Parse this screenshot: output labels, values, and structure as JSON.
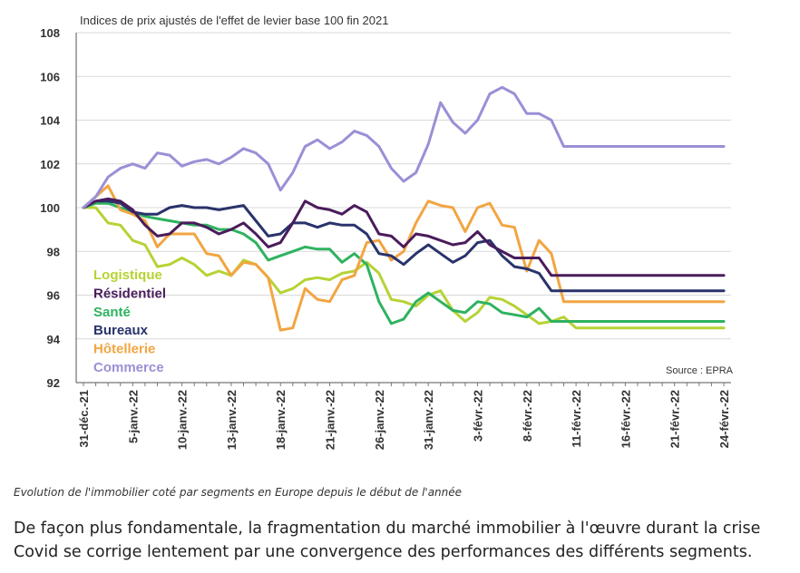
{
  "chart_data": {
    "type": "line",
    "title": "Indices de prix ajustés de l'effet de levier base 100 fin 2021",
    "source": "Source : EPRA",
    "ylim": [
      92,
      108
    ],
    "yticks": [
      92,
      94,
      96,
      98,
      100,
      102,
      104,
      106,
      108
    ],
    "x_tick_labels": [
      "31-déc.-21",
      "5-janv.-22",
      "10-janv.-22",
      "13-janv.-22",
      "18-janv.-22",
      "21-janv.-22",
      "26-janv.-22",
      "31-janv.-22",
      "3-févr.-22",
      "8-févr.-22",
      "11-févr.-22",
      "16-févr.-22",
      "21-févr.-22",
      "24-févr.-22"
    ],
    "x_tick_positions": [
      0,
      4,
      8,
      12,
      16,
      20,
      24,
      28,
      32,
      36,
      40,
      44,
      48,
      52
    ],
    "n_points": 53,
    "series": [
      {
        "name": "Logistique",
        "color": "#b5d334",
        "values": [
          100,
          100,
          99.3,
          99.2,
          98.5,
          98.3,
          97.3,
          97.4,
          97.7,
          97.4,
          96.9,
          97.1,
          96.9,
          97.6,
          97.4,
          96.8,
          96.1,
          96.3,
          96.7,
          96.8,
          96.7,
          97.0,
          97.1,
          97.5,
          97.0,
          95.8,
          95.7,
          95.5,
          96.0,
          96.2,
          95.3,
          94.8,
          95.2,
          95.9,
          95.8,
          95.5,
          95.1,
          94.7,
          94.8,
          95.0,
          94.5,
          94.5,
          94.5,
          94.5,
          94.5,
          94.5,
          94.5,
          94.5,
          94.5,
          94.5,
          94.5,
          94.5,
          94.5
        ]
      },
      {
        "name": "Résidentiel",
        "color": "#4a1c5c",
        "values": [
          100,
          100.3,
          100.4,
          100.3,
          99.9,
          99.2,
          98.7,
          98.8,
          99.3,
          99.3,
          99.1,
          98.8,
          99.0,
          99.3,
          98.8,
          98.2,
          98.4,
          99.3,
          100.3,
          100.0,
          99.9,
          99.7,
          100.1,
          99.8,
          98.8,
          98.7,
          98.2,
          98.8,
          98.7,
          98.5,
          98.3,
          98.4,
          98.9,
          98.3,
          98.0,
          97.7,
          97.7,
          97.7,
          96.9,
          96.9,
          96.9,
          96.9,
          96.9,
          96.9,
          96.9,
          96.9,
          96.9,
          96.9,
          96.9,
          96.9,
          96.9,
          96.9,
          96.9
        ]
      },
      {
        "name": "Santé",
        "color": "#2fb260",
        "values": [
          100,
          100.2,
          100.2,
          100.0,
          99.8,
          99.6,
          99.5,
          99.4,
          99.3,
          99.2,
          99.2,
          99.0,
          99.0,
          98.8,
          98.4,
          97.6,
          97.8,
          98.0,
          98.2,
          98.1,
          98.1,
          97.5,
          97.9,
          97.4,
          95.7,
          94.7,
          94.9,
          95.7,
          96.1,
          95.7,
          95.3,
          95.2,
          95.7,
          95.6,
          95.2,
          95.1,
          95.0,
          95.4,
          94.8,
          94.8,
          94.8,
          94.8,
          94.8,
          94.8,
          94.8,
          94.8,
          94.8,
          94.8,
          94.8,
          94.8,
          94.8,
          94.8,
          94.8
        ]
      },
      {
        "name": "Bureaux",
        "color": "#29336b",
        "values": [
          100,
          100.3,
          100.3,
          100.2,
          99.8,
          99.7,
          99.7,
          100.0,
          100.1,
          100.0,
          100.0,
          99.9,
          100.0,
          100.1,
          99.4,
          98.7,
          98.8,
          99.3,
          99.3,
          99.1,
          99.3,
          99.2,
          99.2,
          98.8,
          97.9,
          97.8,
          97.4,
          97.9,
          98.3,
          97.9,
          97.5,
          97.8,
          98.4,
          98.5,
          97.8,
          97.3,
          97.2,
          97.0,
          96.2,
          96.2,
          96.2,
          96.2,
          96.2,
          96.2,
          96.2,
          96.2,
          96.2,
          96.2,
          96.2,
          96.2,
          96.2,
          96.2,
          96.2
        ]
      },
      {
        "name": "Hôtellerie",
        "color": "#f2a541",
        "values": [
          100,
          100.5,
          101.0,
          99.9,
          99.7,
          99.4,
          98.2,
          98.8,
          98.8,
          98.8,
          97.9,
          97.8,
          96.9,
          97.5,
          97.4,
          96.8,
          94.4,
          94.5,
          96.3,
          95.8,
          95.7,
          96.7,
          96.9,
          98.4,
          98.5,
          97.6,
          98.0,
          99.3,
          100.3,
          100.1,
          100.0,
          98.9,
          100.0,
          100.2,
          99.2,
          99.1,
          97.1,
          98.5,
          97.9,
          95.7,
          95.7,
          95.7,
          95.7,
          95.7,
          95.7,
          95.7,
          95.7,
          95.7,
          95.7,
          95.7,
          95.7,
          95.7,
          95.7
        ]
      },
      {
        "name": "Commerce",
        "color": "#9b8fd6",
        "values": [
          100,
          100.5,
          101.4,
          101.8,
          102.0,
          101.8,
          102.5,
          102.4,
          101.9,
          102.1,
          102.2,
          102.0,
          102.3,
          102.7,
          102.5,
          102.0,
          100.8,
          101.6,
          102.8,
          103.1,
          102.7,
          103.0,
          103.5,
          103.3,
          102.8,
          101.8,
          101.2,
          101.6,
          102.9,
          104.8,
          103.9,
          103.4,
          104.0,
          105.2,
          105.5,
          105.2,
          104.3,
          104.3,
          104.0,
          102.8,
          102.8,
          102.8,
          102.8,
          102.8,
          102.8,
          102.8,
          102.8,
          102.8,
          102.8,
          102.8,
          102.8,
          102.8,
          102.8
        ]
      }
    ]
  },
  "caption": "Evolution de l'immobilier coté par segments en Europe depuis le début de l'année",
  "paragraph": {
    "line1": "De façon plus fondamentale, la fragmentation du marché immobilier à l'œuvre durant la crise",
    "line2": "Covid se corrige lentement par une convergence des performances des différents segments."
  }
}
